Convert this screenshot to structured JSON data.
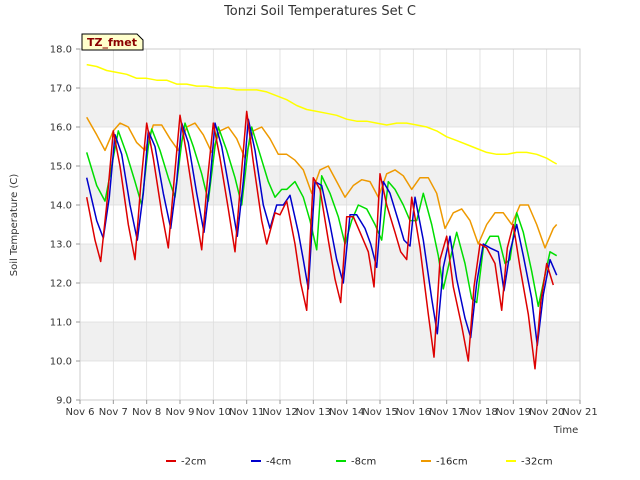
{
  "chart_data": {
    "type": "line",
    "title": "Tonzi Soil Temperatures Set C",
    "xlabel": "Time",
    "ylabel": "Soil Temperature (C)",
    "site_badge": "TZ_fmet",
    "xlim": [
      6,
      21
    ],
    "ylim": [
      9.0,
      18.0
    ],
    "x_ticks": [
      6,
      7,
      8,
      9,
      10,
      11,
      12,
      13,
      14,
      15,
      16,
      17,
      18,
      19,
      20,
      21
    ],
    "x_tick_labels": [
      "Nov 6",
      "Nov 7",
      "Nov 8",
      "Nov 9",
      "Nov 10",
      "Nov 11",
      "Nov 12",
      "Nov 13",
      "Nov 14",
      "Nov 15",
      "Nov 16",
      "Nov 17",
      "Nov 18",
      "Nov 19",
      "Nov 20",
      "Nov 21"
    ],
    "y_ticks": [
      9,
      10,
      11,
      12,
      13,
      14,
      15,
      16,
      17,
      18
    ],
    "y_tick_labels": [
      "9.0",
      "10.0",
      "11.0",
      "12.0",
      "13.0",
      "14.0",
      "15.0",
      "16.0",
      "17.0",
      "18.0"
    ],
    "grid": true,
    "legend_position": "bottom",
    "series": [
      {
        "name": "-2cm",
        "color": "#dd0000",
        "x": [
          6.2,
          6.45,
          6.62,
          6.8,
          7.0,
          7.2,
          7.45,
          7.65,
          7.82,
          8.0,
          8.2,
          8.45,
          8.65,
          8.82,
          9.0,
          9.2,
          9.45,
          9.65,
          9.82,
          10.0,
          10.2,
          10.45,
          10.65,
          10.82,
          11.0,
          11.2,
          11.45,
          11.6,
          11.85,
          12.0,
          12.2,
          12.45,
          12.62,
          12.8,
          13.0,
          13.2,
          13.45,
          13.65,
          13.82,
          14.0,
          14.2,
          14.45,
          14.65,
          14.82,
          15.0,
          15.2,
          15.45,
          15.62,
          15.8,
          15.95,
          16.2,
          16.45,
          16.62,
          16.8,
          17.0,
          17.2,
          17.45,
          17.65,
          17.82,
          18.0,
          18.2,
          18.45,
          18.65,
          18.82,
          19.0,
          19.2,
          19.45,
          19.65,
          19.82,
          20.0,
          20.2
        ],
        "y": [
          14.2,
          13.1,
          12.55,
          14.0,
          15.9,
          15.0,
          13.5,
          12.6,
          14.5,
          16.1,
          15.2,
          13.8,
          12.9,
          14.6,
          16.3,
          15.3,
          13.9,
          12.85,
          14.6,
          16.1,
          15.2,
          13.9,
          12.8,
          14.6,
          16.4,
          15.1,
          13.6,
          13.0,
          13.8,
          13.75,
          14.1,
          13.0,
          12.0,
          11.3,
          14.7,
          14.4,
          13.1,
          12.1,
          11.5,
          13.7,
          13.7,
          13.2,
          12.8,
          11.9,
          14.8,
          14.0,
          13.3,
          12.8,
          12.6,
          14.2,
          12.9,
          11.2,
          10.1,
          12.6,
          13.2,
          11.9,
          10.9,
          10.0,
          11.9,
          13.0,
          12.9,
          12.5,
          11.3,
          12.9,
          13.5,
          12.4,
          11.2,
          9.8,
          11.5,
          12.5,
          11.95
        ]
      },
      {
        "name": "-4cm",
        "color": "#0000cc",
        "x": [
          6.2,
          6.5,
          6.7,
          6.88,
          7.05,
          7.25,
          7.5,
          7.72,
          7.9,
          8.05,
          8.25,
          8.5,
          8.72,
          8.9,
          9.05,
          9.25,
          9.5,
          9.72,
          9.9,
          10.05,
          10.25,
          10.5,
          10.72,
          10.9,
          11.05,
          11.25,
          11.5,
          11.7,
          11.9,
          12.1,
          12.3,
          12.55,
          12.7,
          12.85,
          13.05,
          13.25,
          13.5,
          13.7,
          13.9,
          14.1,
          14.3,
          14.55,
          14.72,
          14.9,
          15.1,
          15.3,
          15.55,
          15.72,
          15.9,
          16.05,
          16.3,
          16.55,
          16.72,
          16.9,
          17.1,
          17.3,
          17.55,
          17.72,
          17.9,
          18.1,
          18.3,
          18.55,
          18.72,
          18.9,
          19.1,
          19.3,
          19.55,
          19.72,
          19.9,
          20.1,
          20.3
        ],
        "y": [
          14.7,
          13.6,
          13.15,
          14.2,
          15.8,
          15.3,
          14.0,
          13.1,
          14.3,
          15.9,
          15.5,
          14.3,
          13.4,
          14.6,
          16.1,
          15.6,
          14.3,
          13.3,
          14.6,
          16.1,
          15.5,
          14.3,
          13.2,
          14.6,
          16.2,
          15.4,
          14.0,
          13.4,
          14.0,
          14.0,
          14.25,
          13.3,
          12.6,
          11.85,
          14.6,
          14.5,
          13.5,
          12.6,
          12.0,
          13.75,
          13.75,
          13.4,
          13.0,
          12.4,
          14.6,
          14.3,
          13.6,
          13.1,
          12.95,
          14.2,
          13.1,
          11.6,
          10.7,
          12.4,
          13.2,
          12.1,
          11.1,
          10.6,
          12.0,
          13.0,
          12.9,
          12.8,
          11.8,
          12.8,
          13.5,
          12.7,
          11.6,
          10.4,
          11.7,
          12.6,
          12.2
        ]
      },
      {
        "name": "-8cm",
        "color": "#00dd00",
        "x": [
          6.2,
          6.5,
          6.75,
          6.95,
          7.15,
          7.4,
          7.65,
          7.85,
          8.05,
          8.15,
          8.4,
          8.65,
          8.85,
          9.05,
          9.15,
          9.4,
          9.65,
          9.85,
          10.05,
          10.15,
          10.4,
          10.65,
          10.85,
          11.05,
          11.15,
          11.4,
          11.65,
          11.85,
          12.05,
          12.2,
          12.45,
          12.7,
          12.9,
          13.1,
          13.25,
          13.5,
          13.75,
          13.95,
          14.15,
          14.35,
          14.6,
          14.85,
          15.05,
          15.25,
          15.45,
          15.7,
          15.9,
          16.1,
          16.3,
          16.55,
          16.75,
          16.9,
          17.1,
          17.3,
          17.55,
          17.75,
          17.9,
          18.1,
          18.3,
          18.55,
          18.75,
          18.9,
          19.1,
          19.3,
          19.55,
          19.75,
          19.9,
          20.1,
          20.3
        ],
        "y": [
          15.35,
          14.5,
          14.1,
          15.0,
          15.9,
          15.3,
          14.6,
          14.0,
          15.5,
          15.95,
          15.4,
          14.7,
          14.2,
          15.6,
          16.1,
          15.5,
          14.8,
          14.1,
          15.5,
          16.0,
          15.4,
          14.7,
          14.0,
          15.5,
          16.0,
          15.3,
          14.6,
          14.2,
          14.4,
          14.4,
          14.6,
          14.2,
          13.6,
          12.85,
          14.75,
          14.3,
          13.7,
          13.0,
          13.6,
          14.0,
          13.9,
          13.5,
          13.1,
          14.6,
          14.4,
          14.0,
          13.6,
          13.6,
          14.3,
          13.5,
          12.7,
          11.85,
          12.6,
          13.3,
          12.5,
          11.6,
          11.5,
          12.9,
          13.2,
          13.2,
          12.5,
          12.6,
          13.8,
          13.3,
          12.3,
          11.4,
          12.0,
          12.8,
          12.7
        ]
      },
      {
        "name": "-16cm",
        "color": "#ee9900",
        "x": [
          6.2,
          6.5,
          6.75,
          7.0,
          7.2,
          7.45,
          7.7,
          7.95,
          8.2,
          8.45,
          8.7,
          8.95,
          9.2,
          9.45,
          9.7,
          9.95,
          10.2,
          10.45,
          10.7,
          10.95,
          11.2,
          11.45,
          11.7,
          11.95,
          12.2,
          12.45,
          12.7,
          12.95,
          13.2,
          13.45,
          13.7,
          13.95,
          14.2,
          14.45,
          14.7,
          14.95,
          15.2,
          15.45,
          15.7,
          15.95,
          16.2,
          16.45,
          16.7,
          16.95,
          17.2,
          17.45,
          17.7,
          17.95,
          18.2,
          18.45,
          18.7,
          18.95,
          19.2,
          19.45,
          19.7,
          19.95,
          20.2,
          20.3
        ],
        "y": [
          16.25,
          15.8,
          15.4,
          15.9,
          16.1,
          16.0,
          15.6,
          15.4,
          16.05,
          16.05,
          15.7,
          15.4,
          16.0,
          16.1,
          15.8,
          15.35,
          15.9,
          16.0,
          15.7,
          15.2,
          15.9,
          16.0,
          15.7,
          15.3,
          15.3,
          15.15,
          14.9,
          14.3,
          14.9,
          15.0,
          14.6,
          14.2,
          14.5,
          14.65,
          14.6,
          14.2,
          14.8,
          14.9,
          14.75,
          14.4,
          14.7,
          14.7,
          14.3,
          13.4,
          13.8,
          13.9,
          13.6,
          13.0,
          13.5,
          13.8,
          13.8,
          13.5,
          14.0,
          14.0,
          13.5,
          12.9,
          13.4,
          13.5
        ]
      },
      {
        "name": "-32cm",
        "color": "#ffff00",
        "x": [
          6.2,
          6.5,
          6.8,
          7.1,
          7.4,
          7.7,
          8.0,
          8.3,
          8.6,
          8.9,
          9.2,
          9.5,
          9.8,
          10.1,
          10.4,
          10.7,
          11.0,
          11.3,
          11.6,
          11.9,
          12.2,
          12.5,
          12.8,
          13.1,
          13.4,
          13.7,
          14.0,
          14.3,
          14.6,
          14.9,
          15.2,
          15.5,
          15.8,
          16.1,
          16.4,
          16.7,
          17.0,
          17.3,
          17.6,
          17.9,
          18.2,
          18.5,
          18.8,
          19.1,
          19.4,
          19.7,
          20.0,
          20.2,
          20.3
        ],
        "y": [
          17.6,
          17.55,
          17.45,
          17.4,
          17.35,
          17.25,
          17.25,
          17.2,
          17.2,
          17.1,
          17.1,
          17.05,
          17.05,
          17.0,
          17.0,
          16.95,
          16.95,
          16.95,
          16.9,
          16.8,
          16.7,
          16.55,
          16.45,
          16.4,
          16.35,
          16.3,
          16.2,
          16.15,
          16.15,
          16.1,
          16.05,
          16.1,
          16.1,
          16.05,
          16.0,
          15.9,
          15.75,
          15.65,
          15.55,
          15.45,
          15.35,
          15.3,
          15.3,
          15.35,
          15.35,
          15.3,
          15.2,
          15.1,
          15.05
        ]
      }
    ]
  }
}
